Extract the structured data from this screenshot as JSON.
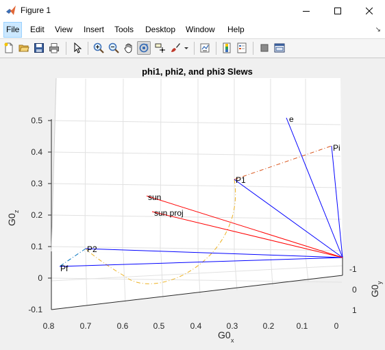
{
  "window": {
    "title": "Figure 1"
  },
  "menu": {
    "items": [
      "File",
      "Edit",
      "View",
      "Insert",
      "Tools",
      "Desktop",
      "Window",
      "Help"
    ]
  },
  "toolbar": {
    "icons": [
      "new-figure",
      "open-file",
      "save",
      "print",
      "edit-plot",
      "zoom-in",
      "zoom-out",
      "pan",
      "rotate-3d",
      "data-cursor",
      "brush",
      "link-plot",
      "colorbar",
      "legend",
      "hide-plot-tools",
      "show-plot-tools"
    ]
  },
  "chart_data": {
    "type": "line3d",
    "title": "phi1, phi2, and phi3 Slews",
    "xlabel": "G0",
    "xlabel_sub": "x",
    "ylabel": "G0",
    "ylabel_sub": "y",
    "zlabel": "G0",
    "zlabel_sub": "z",
    "xlim": [
      0,
      0.8
    ],
    "ylim": [
      -1,
      1
    ],
    "zlim": [
      -0.1,
      0.5
    ],
    "x_ticks": [
      "0.8",
      "0.7",
      "0.6",
      "0.5",
      "0.4",
      "0.3",
      "0.2",
      "0.1",
      "0"
    ],
    "y_ticks": [
      "-1",
      "0",
      "1"
    ],
    "z_ticks": [
      "-0.1",
      "0",
      "0.1",
      "0.2",
      "0.3",
      "0.4",
      "0.5"
    ],
    "grid": true,
    "annotations": [
      "e",
      "Pi",
      "P1",
      "sun",
      "sun proj",
      "P2",
      "Pf"
    ],
    "colors": {
      "vectors": "#0000ff",
      "sun": "#ff0000",
      "slew_1": "#d95319",
      "slew_2": "#edb120",
      "slew_3": "#0072bd"
    }
  }
}
